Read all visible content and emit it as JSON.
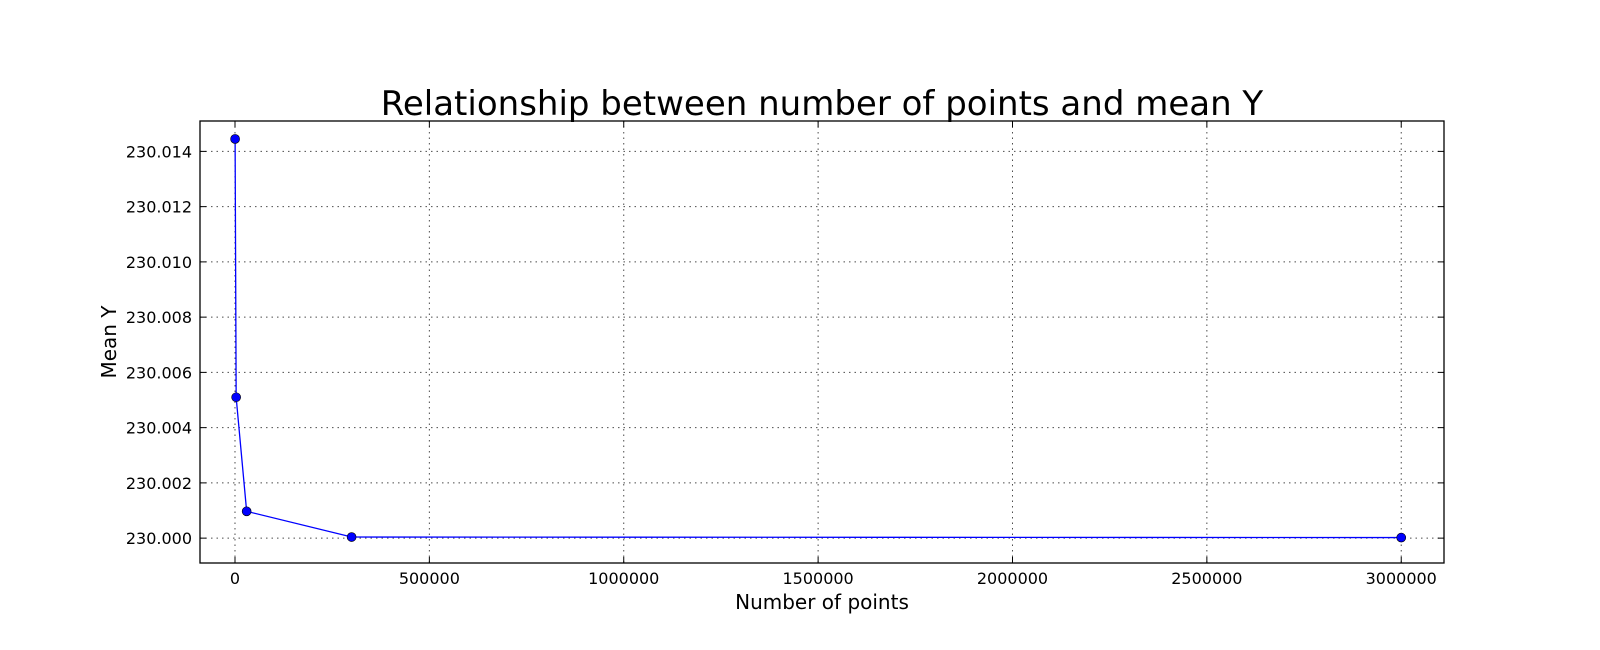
{
  "chart_data": {
    "type": "line",
    "title": "Relationship between number of points and mean Y",
    "xlabel": "Number of points",
    "ylabel": "Mean Y",
    "xlim": [
      -90000,
      3110000
    ],
    "ylim": [
      229.9991,
      230.0151
    ],
    "x_ticks": [
      0,
      500000,
      1000000,
      1500000,
      2000000,
      2500000,
      3000000
    ],
    "x_tick_labels": [
      "0",
      "500000",
      "1000000",
      "1500000",
      "2000000",
      "2500000",
      "3000000"
    ],
    "y_ticks": [
      230.0,
      230.002,
      230.004,
      230.006,
      230.008,
      230.01,
      230.012,
      230.014
    ],
    "y_tick_labels": [
      "230.000",
      "230.002",
      "230.004",
      "230.006",
      "230.008",
      "230.010",
      "230.012",
      "230.014"
    ],
    "grid": true,
    "series": [
      {
        "x": [
          300,
          3000,
          30000,
          300000,
          3000000
        ],
        "y": [
          230.01445,
          230.0051,
          230.00097,
          230.00004,
          230.00002
        ],
        "color": "#0000ff",
        "marker": "circle"
      }
    ]
  }
}
